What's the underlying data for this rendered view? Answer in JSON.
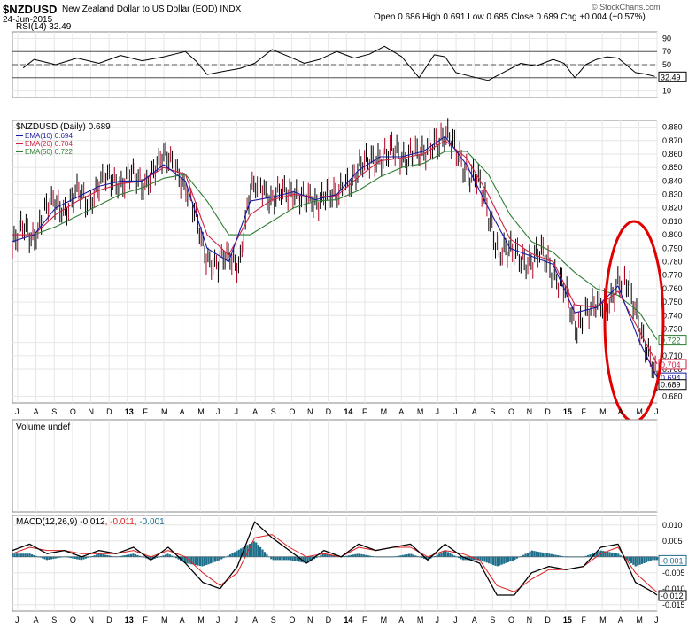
{
  "header": {
    "symbol": "$NZDUSD",
    "description": "New Zealand Dollar to US Dollar (EOD)",
    "exchange": "INDX",
    "date": "24-Jun-2015",
    "quote": "Open 0.686  High 0.691  Low 0.685  Close 0.689  Chg +0.004 (+0.57%)",
    "copyright": "© StockCharts.com"
  },
  "colors": {
    "price": "#000000",
    "ema10": "#1a1aa0",
    "ema20": "#cc2244",
    "ema50": "#2e7d32",
    "rsi": "#000000",
    "macd": "#000000",
    "signal": "#dd2222",
    "histogram": "#1f6f8b",
    "highlight": "#e00000"
  },
  "chart_data": [
    {
      "type": "line",
      "panel": "rsi",
      "title": "RSI(14) 32.49",
      "ylim": [
        0,
        100
      ],
      "yticks": [
        "90",
        "70",
        "50",
        "30",
        "10"
      ],
      "reference_lines": [
        70,
        50,
        30
      ],
      "last_value_label": "32.49",
      "series": [
        {
          "name": "RSI(14)",
          "x": [
            2012.55,
            2012.6,
            2012.7,
            2012.8,
            2012.9,
            2013.0,
            2013.1,
            2013.2,
            2013.3,
            2013.35,
            2013.4,
            2013.48,
            2013.55,
            2013.62,
            2013.7,
            2013.78,
            2013.85,
            2013.92,
            2014.0,
            2014.08,
            2014.15,
            2014.22,
            2014.3,
            2014.38,
            2014.45,
            2014.5,
            2014.55,
            2014.62,
            2014.7,
            2014.78,
            2014.85,
            2014.92,
            2015.0,
            2015.05,
            2015.1,
            2015.15,
            2015.2,
            2015.25,
            2015.3,
            2015.38,
            2015.42,
            2015.47
          ],
          "values": [
            45,
            58,
            50,
            60,
            52,
            64,
            56,
            62,
            70,
            55,
            35,
            40,
            44,
            52,
            73,
            62,
            52,
            58,
            70,
            60,
            66,
            78,
            62,
            30,
            65,
            62,
            38,
            32,
            26,
            40,
            52,
            48,
            58,
            52,
            30,
            50,
            58,
            62,
            60,
            38,
            36,
            32
          ]
        }
      ]
    },
    {
      "type": "line",
      "panel": "price",
      "title": "$NZDUSD (Daily) 0.689",
      "ylim": [
        0.675,
        0.885
      ],
      "yticks": [
        "0.880",
        "0.870",
        "0.860",
        "0.850",
        "0.840",
        "0.830",
        "0.820",
        "0.810",
        "0.800",
        "0.790",
        "0.780",
        "0.770",
        "0.760",
        "0.750",
        "0.740",
        "0.730",
        "0.720",
        "0.710",
        "0.700",
        "0.680"
      ],
      "xticks": [
        "J",
        "A",
        "S",
        "O",
        "N",
        "D",
        "13",
        "F",
        "M",
        "A",
        "M",
        "J",
        "J",
        "A",
        "S",
        "O",
        "N",
        "D",
        "14",
        "F",
        "M",
        "A",
        "M",
        "J",
        "J",
        "A",
        "S",
        "O",
        "N",
        "D",
        "15",
        "F",
        "M",
        "A",
        "M",
        "J"
      ],
      "legend": [
        "EMA(10) 0.694",
        "EMA(20) 0.704",
        "EMA(50) 0.722"
      ],
      "value_labels": [
        "0.722",
        "0.704",
        "0.694",
        "0.689"
      ],
      "series": [
        {
          "name": "$NZDUSD",
          "x": [
            2012.5,
            2012.55,
            2012.6,
            2012.65,
            2012.7,
            2012.75,
            2012.8,
            2012.85,
            2012.9,
            2012.95,
            2013.0,
            2013.05,
            2013.1,
            2013.15,
            2013.2,
            2013.25,
            2013.3,
            2013.35,
            2013.4,
            2013.45,
            2013.5,
            2013.55,
            2013.6,
            2013.65,
            2013.7,
            2013.75,
            2013.8,
            2013.85,
            2013.9,
            2013.95,
            2014.0,
            2014.05,
            2014.1,
            2014.15,
            2014.2,
            2014.25,
            2014.3,
            2014.35,
            2014.4,
            2014.45,
            2014.5,
            2014.55,
            2014.6,
            2014.65,
            2014.7,
            2014.75,
            2014.8,
            2014.85,
            2014.9,
            2014.95,
            2015.0,
            2015.05,
            2015.1,
            2015.15,
            2015.2,
            2015.25,
            2015.3,
            2015.35,
            2015.4,
            2015.45,
            2015.48
          ],
          "values": [
            0.79,
            0.805,
            0.8,
            0.815,
            0.825,
            0.82,
            0.83,
            0.825,
            0.838,
            0.84,
            0.84,
            0.845,
            0.835,
            0.85,
            0.855,
            0.855,
            0.835,
            0.81,
            0.785,
            0.775,
            0.785,
            0.78,
            0.83,
            0.84,
            0.825,
            0.83,
            0.835,
            0.825,
            0.822,
            0.835,
            0.825,
            0.84,
            0.85,
            0.852,
            0.86,
            0.862,
            0.855,
            0.865,
            0.855,
            0.87,
            0.875,
            0.86,
            0.85,
            0.84,
            0.815,
            0.79,
            0.785,
            0.785,
            0.78,
            0.785,
            0.775,
            0.76,
            0.73,
            0.745,
            0.745,
            0.75,
            0.765,
            0.76,
            0.735,
            0.705,
            0.689
          ]
        },
        {
          "name": "EMA(10)",
          "x": [
            2012.5,
            2012.6,
            2012.7,
            2012.8,
            2012.9,
            2013.0,
            2013.1,
            2013.2,
            2013.3,
            2013.4,
            2013.5,
            2013.6,
            2013.7,
            2013.8,
            2013.9,
            2014.0,
            2014.1,
            2014.2,
            2014.3,
            2014.4,
            2014.5,
            2014.6,
            2014.7,
            2014.8,
            2014.9,
            2015.0,
            2015.1,
            2015.2,
            2015.3,
            2015.4,
            2015.48
          ],
          "values": [
            0.795,
            0.8,
            0.82,
            0.828,
            0.836,
            0.84,
            0.84,
            0.852,
            0.84,
            0.79,
            0.78,
            0.825,
            0.828,
            0.832,
            0.826,
            0.83,
            0.848,
            0.858,
            0.858,
            0.862,
            0.873,
            0.852,
            0.82,
            0.79,
            0.784,
            0.778,
            0.742,
            0.746,
            0.762,
            0.72,
            0.694
          ]
        },
        {
          "name": "EMA(20)",
          "x": [
            2012.5,
            2012.6,
            2012.7,
            2012.8,
            2012.9,
            2013.0,
            2013.1,
            2013.2,
            2013.3,
            2013.4,
            2013.5,
            2013.6,
            2013.7,
            2013.8,
            2013.9,
            2014.0,
            2014.1,
            2014.2,
            2014.3,
            2014.4,
            2014.5,
            2014.6,
            2014.7,
            2014.8,
            2014.9,
            2015.0,
            2015.1,
            2015.2,
            2015.3,
            2015.4,
            2015.48
          ],
          "values": [
            0.8,
            0.8,
            0.815,
            0.825,
            0.833,
            0.838,
            0.84,
            0.85,
            0.845,
            0.8,
            0.785,
            0.815,
            0.826,
            0.83,
            0.828,
            0.829,
            0.843,
            0.855,
            0.857,
            0.86,
            0.87,
            0.857,
            0.83,
            0.797,
            0.786,
            0.78,
            0.748,
            0.746,
            0.758,
            0.728,
            0.704
          ]
        },
        {
          "name": "EMA(50)",
          "x": [
            2012.5,
            2012.6,
            2012.7,
            2012.8,
            2012.9,
            2013.0,
            2013.1,
            2013.2,
            2013.3,
            2013.4,
            2013.5,
            2013.6,
            2013.7,
            2013.8,
            2013.9,
            2014.0,
            2014.1,
            2014.2,
            2014.3,
            2014.4,
            2014.5,
            2014.6,
            2014.7,
            2014.8,
            2014.9,
            2015.0,
            2015.1,
            2015.2,
            2015.3,
            2015.4,
            2015.48
          ],
          "values": [
            0.8,
            0.8,
            0.806,
            0.814,
            0.822,
            0.83,
            0.835,
            0.842,
            0.845,
            0.825,
            0.8,
            0.8,
            0.81,
            0.82,
            0.825,
            0.826,
            0.833,
            0.843,
            0.85,
            0.853,
            0.862,
            0.862,
            0.845,
            0.815,
            0.795,
            0.787,
            0.772,
            0.76,
            0.755,
            0.742,
            0.722
          ]
        }
      ]
    },
    {
      "type": "bar",
      "panel": "volume",
      "title": "Volume undef",
      "values": []
    },
    {
      "type": "line",
      "panel": "macd",
      "title": "MACD(12,26,9) -0.012, -0.011, -0.001",
      "ylim": [
        -0.017,
        0.013
      ],
      "yticks": [
        "0.010",
        "0.005",
        "-0.005",
        "-0.010",
        "-0.015"
      ],
      "value_labels": [
        "-0.001",
        "-0.012"
      ],
      "series": [
        {
          "name": "MACD",
          "x": [
            2012.5,
            2012.58,
            2012.66,
            2012.74,
            2012.82,
            2012.9,
            2012.98,
            2013.06,
            2013.14,
            2013.22,
            2013.3,
            2013.38,
            2013.46,
            2013.54,
            2013.62,
            2013.7,
            2013.78,
            2013.86,
            2013.94,
            2014.02,
            2014.1,
            2014.18,
            2014.26,
            2014.34,
            2014.42,
            2014.5,
            2014.58,
            2014.66,
            2014.74,
            2014.82,
            2014.9,
            2014.98,
            2015.06,
            2015.14,
            2015.22,
            2015.3,
            2015.38,
            2015.46,
            2015.48
          ],
          "values": [
            0.002,
            0.004,
            0.001,
            0.002,
            0.0,
            0.002,
            0.001,
            0.003,
            -0.001,
            0.003,
            -0.002,
            -0.008,
            -0.01,
            -0.003,
            0.011,
            0.006,
            0.002,
            -0.002,
            0.002,
            0.0,
            0.004,
            0.002,
            0.003,
            0.004,
            -0.001,
            0.004,
            0.0,
            -0.002,
            -0.012,
            -0.012,
            -0.005,
            -0.003,
            -0.004,
            -0.003,
            0.003,
            0.004,
            -0.008,
            -0.011,
            -0.012
          ]
        },
        {
          "name": "Signal",
          "x": [
            2012.5,
            2012.58,
            2012.66,
            2012.74,
            2012.82,
            2012.9,
            2012.98,
            2013.06,
            2013.14,
            2013.22,
            2013.3,
            2013.38,
            2013.46,
            2013.54,
            2013.62,
            2013.7,
            2013.78,
            2013.86,
            2013.94,
            2014.02,
            2014.1,
            2014.18,
            2014.26,
            2014.34,
            2014.42,
            2014.5,
            2014.58,
            2014.66,
            2014.74,
            2014.82,
            2014.9,
            2014.98,
            2015.06,
            2015.14,
            2015.22,
            2015.3,
            2015.38,
            2015.46,
            2015.48
          ],
          "values": [
            0.001,
            0.003,
            0.002,
            0.002,
            0.001,
            0.001,
            0.001,
            0.002,
            0.0,
            0.002,
            0.0,
            -0.005,
            -0.009,
            -0.005,
            0.006,
            0.007,
            0.003,
            0.0,
            0.001,
            0.0,
            0.003,
            0.002,
            0.003,
            0.003,
            0.0,
            0.002,
            0.001,
            -0.001,
            -0.009,
            -0.011,
            -0.007,
            -0.004,
            -0.004,
            -0.003,
            0.001,
            0.003,
            -0.005,
            -0.01,
            -0.011
          ]
        },
        {
          "name": "Histogram",
          "x": [
            2012.5,
            2012.58,
            2012.66,
            2012.74,
            2012.82,
            2012.9,
            2012.98,
            2013.06,
            2013.14,
            2013.22,
            2013.3,
            2013.38,
            2013.46,
            2013.54,
            2013.62,
            2013.7,
            2013.78,
            2013.86,
            2013.94,
            2014.02,
            2014.1,
            2014.18,
            2014.26,
            2014.34,
            2014.42,
            2014.5,
            2014.58,
            2014.66,
            2014.74,
            2014.82,
            2014.9,
            2014.98,
            2015.06,
            2015.14,
            2015.22,
            2015.3,
            2015.38,
            2015.46,
            2015.48
          ],
          "values": [
            0.001,
            0.001,
            -0.001,
            0.0,
            -0.001,
            0.001,
            0.0,
            0.001,
            -0.001,
            0.001,
            -0.002,
            -0.003,
            -0.001,
            0.002,
            0.005,
            -0.001,
            -0.001,
            -0.002,
            0.001,
            0.0,
            0.001,
            0.0,
            0.0,
            0.001,
            -0.001,
            0.002,
            -0.001,
            -0.001,
            -0.003,
            -0.001,
            0.002,
            0.001,
            0.0,
            0.0,
            0.002,
            0.001,
            -0.003,
            -0.001,
            -0.001
          ]
        }
      ]
    }
  ]
}
